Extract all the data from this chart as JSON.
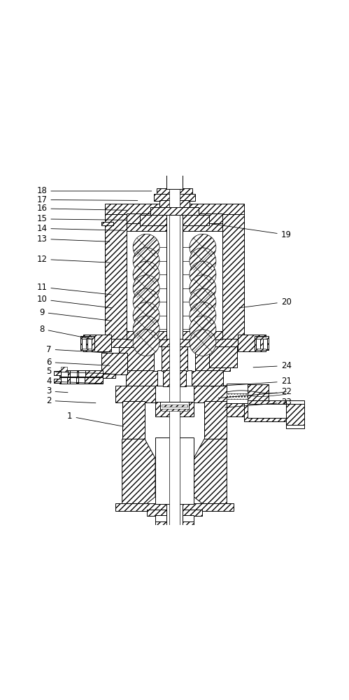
{
  "bg_color": "#ffffff",
  "line_color": "#000000",
  "fig_width": 4.99,
  "fig_height": 10.0,
  "dpi": 100,
  "annotations": {
    "18": [
      0.12,
      0.955,
      0.44,
      0.955
    ],
    "17": [
      0.12,
      0.93,
      0.4,
      0.928
    ],
    "16": [
      0.12,
      0.905,
      0.37,
      0.9
    ],
    "15": [
      0.12,
      0.875,
      0.37,
      0.872
    ],
    "14": [
      0.12,
      0.848,
      0.36,
      0.842
    ],
    "13": [
      0.12,
      0.818,
      0.32,
      0.81
    ],
    "12": [
      0.12,
      0.76,
      0.32,
      0.75
    ],
    "11": [
      0.12,
      0.68,
      0.325,
      0.658
    ],
    "10": [
      0.12,
      0.645,
      0.325,
      0.62
    ],
    "9": [
      0.12,
      0.608,
      0.325,
      0.583
    ],
    "8": [
      0.12,
      0.56,
      0.27,
      0.53
    ],
    "7": [
      0.14,
      0.502,
      0.34,
      0.49
    ],
    "6": [
      0.14,
      0.465,
      0.32,
      0.455
    ],
    "5": [
      0.14,
      0.438,
      0.32,
      0.432
    ],
    "4": [
      0.14,
      0.41,
      0.3,
      0.404
    ],
    "3": [
      0.14,
      0.382,
      0.2,
      0.378
    ],
    "2": [
      0.14,
      0.355,
      0.28,
      0.348
    ],
    "1": [
      0.2,
      0.31,
      0.36,
      0.28
    ],
    "19": [
      0.82,
      0.83,
      0.6,
      0.862
    ],
    "20": [
      0.82,
      0.638,
      0.68,
      0.62
    ],
    "21": [
      0.82,
      0.41,
      0.6,
      0.395
    ],
    "22": [
      0.82,
      0.38,
      0.62,
      0.362
    ],
    "23": [
      0.82,
      0.35,
      0.64,
      0.335
    ],
    "24": [
      0.82,
      0.455,
      0.72,
      0.45
    ]
  }
}
